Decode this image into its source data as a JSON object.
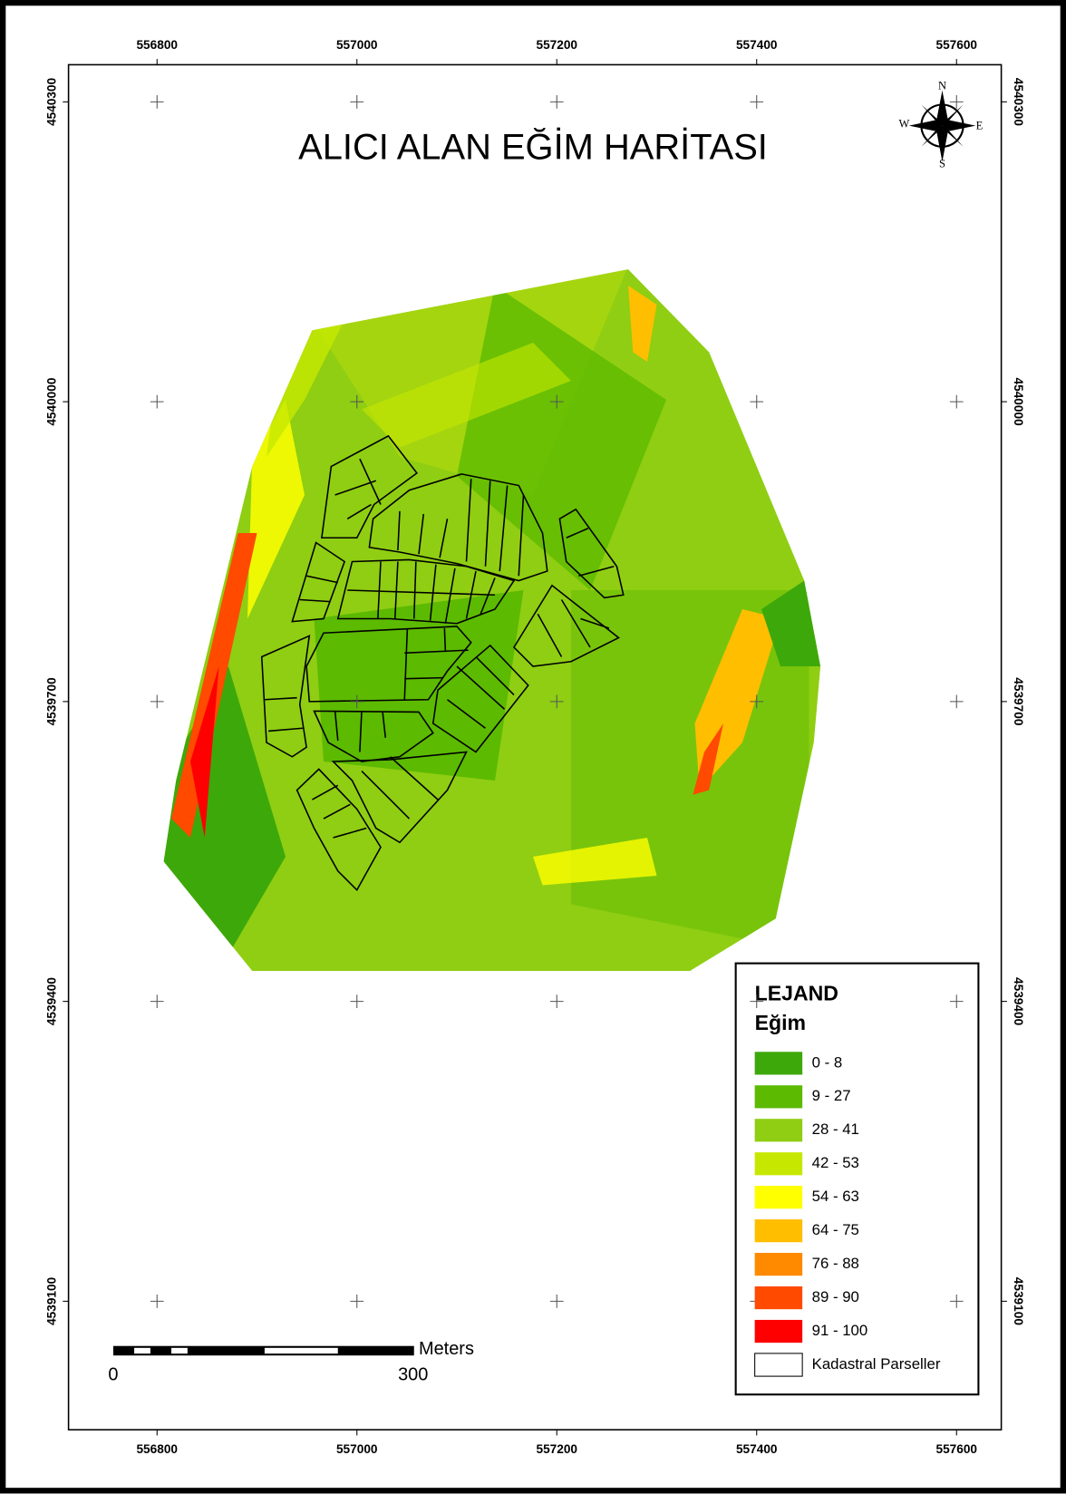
{
  "chart_data": {
    "type": "map",
    "title": "ALICI ALAN EĞİM HARİTASI",
    "xticks": [
      556800,
      557000,
      557200,
      557400,
      557600
    ],
    "yticks": [
      4540300,
      4540000,
      4539700,
      4539400,
      4539100
    ],
    "legend": {
      "title": "LEJAND",
      "subtitle": "Eğim",
      "items": [
        {
          "label": "0 - 8",
          "color": "#3da80a"
        },
        {
          "label": "9 - 27",
          "color": "#5cba00"
        },
        {
          "label": "28 - 41",
          "color": "#8fce12"
        },
        {
          "label": "42 - 53",
          "color": "#c6e800"
        },
        {
          "label": "54 - 63",
          "color": "#ffff00"
        },
        {
          "label": "64 - 75",
          "color": "#ffbe00"
        },
        {
          "label": "76 - 88",
          "color": "#ff8a00"
        },
        {
          "label": "89 - 90",
          "color": "#ff4a00"
        },
        {
          "label": "91 - 100",
          "color": "#ff0000"
        },
        {
          "label": "Kadastral Parseller",
          "color": "#ffffff"
        }
      ]
    },
    "scale_bar": {
      "unit": "Meters",
      "labels": [
        0,
        300
      ]
    },
    "compass": {
      "north": "N",
      "south": "S",
      "east": "E",
      "west": "W"
    }
  }
}
